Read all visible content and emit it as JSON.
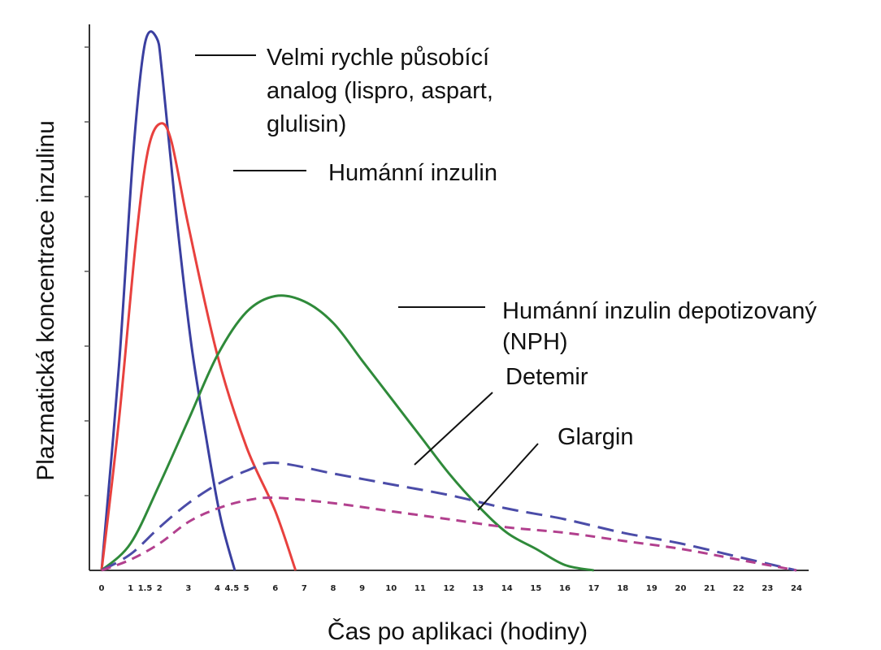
{
  "chart_data": {
    "type": "line",
    "xlabel": "Čas po aplikaci (hodiny)",
    "ylabel": "Plazmatická koncentrace inzulinu",
    "x_ticks": [
      "0",
      "1",
      "1.5",
      "2",
      "3",
      "4",
      "4.5",
      "5",
      "6",
      "7",
      "8",
      "9",
      "10",
      "11",
      "12",
      "13",
      "14",
      "15",
      "16",
      "17",
      "18",
      "19",
      "20",
      "21",
      "22",
      "23",
      "24"
    ],
    "ylim": [
      0,
      100
    ],
    "grid": false,
    "series": [
      {
        "name": "Velmi rychle působící analog (lispro, aspart, glulisin)",
        "color": "#3a3fa0",
        "style": "solid",
        "points": [
          [
            0,
            0
          ],
          [
            0.6,
            38
          ],
          [
            1.1,
            78
          ],
          [
            1.5,
            98
          ],
          [
            1.9,
            99
          ],
          [
            2.1,
            92
          ],
          [
            2.6,
            65
          ],
          [
            3.1,
            42
          ],
          [
            3.6,
            25
          ],
          [
            4.1,
            10
          ],
          [
            4.6,
            0
          ]
        ]
      },
      {
        "name": "Humánní inzulin",
        "color": "#e8413e",
        "style": "solid",
        "points": [
          [
            0,
            0
          ],
          [
            0.6,
            28
          ],
          [
            1.2,
            62
          ],
          [
            1.6,
            78
          ],
          [
            2.0,
            83
          ],
          [
            2.4,
            80
          ],
          [
            3.0,
            64
          ],
          [
            4.0,
            40
          ],
          [
            5.0,
            23
          ],
          [
            6.0,
            11
          ],
          [
            6.7,
            0
          ]
        ]
      },
      {
        "name": "Humánní inzulin depotizovaný (NPH)",
        "color": "#2f8a3a",
        "style": "solid",
        "points": [
          [
            0,
            0
          ],
          [
            1,
            5
          ],
          [
            2,
            16
          ],
          [
            3,
            28
          ],
          [
            4,
            40
          ],
          [
            5,
            48
          ],
          [
            6,
            51
          ],
          [
            7,
            50
          ],
          [
            8,
            46
          ],
          [
            9,
            39
          ],
          [
            10,
            32
          ],
          [
            11,
            25
          ],
          [
            12,
            18
          ],
          [
            13,
            12
          ],
          [
            14,
            7
          ],
          [
            15,
            4
          ],
          [
            16,
            1
          ],
          [
            17,
            0
          ]
        ]
      },
      {
        "name": "Detemir",
        "color": "#4b4ca8",
        "style": "dashed",
        "points": [
          [
            0,
            0
          ],
          [
            1,
            3
          ],
          [
            2,
            8
          ],
          [
            3,
            12.5
          ],
          [
            4,
            16
          ],
          [
            5,
            18.5
          ],
          [
            6,
            20
          ],
          [
            8,
            18
          ],
          [
            10,
            16
          ],
          [
            12,
            14
          ],
          [
            14,
            11.5
          ],
          [
            16,
            9.5
          ],
          [
            18,
            7
          ],
          [
            20,
            5
          ],
          [
            22,
            2.5
          ],
          [
            24,
            0
          ]
        ]
      },
      {
        "name": "Glargin",
        "color": "#b2408e",
        "style": "dashed",
        "points": [
          [
            0,
            0
          ],
          [
            1,
            2
          ],
          [
            2,
            5
          ],
          [
            3,
            9
          ],
          [
            4,
            11.5
          ],
          [
            5,
            13
          ],
          [
            6,
            13.5
          ],
          [
            8,
            12.5
          ],
          [
            10,
            11
          ],
          [
            12,
            9.5
          ],
          [
            14,
            8
          ],
          [
            16,
            7
          ],
          [
            18,
            5.5
          ],
          [
            20,
            4
          ],
          [
            22,
            2
          ],
          [
            24,
            0
          ]
        ]
      }
    ]
  },
  "annotations": {
    "rapid_line1": "Velmi rychle působící",
    "rapid_line2": "analog (lispro, aspart,",
    "rapid_line3": "glulisin)",
    "human": "Humánní inzulin",
    "nph_line1": "Humánní inzulin depotizovaný",
    "nph_line2": "(NPH)",
    "detemir": "Detemir",
    "glargin": "Glargin"
  }
}
